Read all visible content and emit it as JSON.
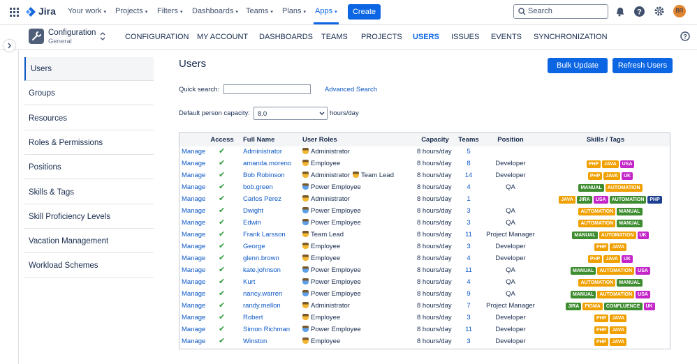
{
  "nav": {
    "product": "Jira",
    "items": [
      "Your work",
      "Projects",
      "Filters",
      "Dashboards",
      "Teams",
      "Plans",
      "Apps"
    ],
    "active_item": 6,
    "create": "Create",
    "search": "Search",
    "avatar": "BR"
  },
  "app": {
    "title": "Configuration",
    "subtitle": "General",
    "tabs": [
      "CONFIGURATION",
      "MY ACCOUNT",
      "DASHBOARDS",
      "TEAMS",
      "PROJECTS",
      "USERS",
      "ISSUES",
      "EVENTS",
      "SYNCHRONIZATION"
    ],
    "active_tab": 5
  },
  "sidebar": {
    "items": [
      "Users",
      "Groups",
      "Resources",
      "Roles & Permissions",
      "Positions",
      "Skills & Tags",
      "Skill Proficiency Levels",
      "Vacation Management",
      "Workload Schemes"
    ],
    "active": 0
  },
  "main": {
    "title": "Users",
    "buttons": [
      "Bulk Update",
      "Refresh Users"
    ],
    "quick_search_label": "Quick search:",
    "advanced_search": "Advanced Search",
    "capacity_label": "Default person capacity:",
    "capacity_value": "8.0",
    "capacity_unit": "hours/day"
  },
  "table": {
    "columns": [
      "Access",
      "Full Name",
      "User Roles",
      "Capacity",
      "Teams",
      "Position",
      "Skills / Tags"
    ],
    "rows": [
      {
        "action": "Manage",
        "name": "Administrator",
        "roles": [
          "Administrator"
        ],
        "capacity": "8 hours/day",
        "teams": 5,
        "position": null,
        "tags": []
      },
      {
        "action": "Manage",
        "name": "amanda.moreno",
        "roles": [
          "Employee"
        ],
        "capacity": "8 hours/day",
        "teams": 8,
        "position": "Developer",
        "tags": [
          {
            "label": "PHP",
            "color": "#f0a000"
          },
          {
            "label": "JAVA",
            "color": "#f0a000"
          },
          {
            "label": "USA",
            "color": "#c425c9"
          }
        ]
      },
      {
        "action": "Manage",
        "name": "Bob Robinson",
        "roles": [
          "Administrator",
          "Team Lead"
        ],
        "capacity": "8 hours/day",
        "teams": 14,
        "position": "Developer",
        "tags": [
          {
            "label": "PHP",
            "color": "#f0a000"
          },
          {
            "label": "JAVA",
            "color": "#f0a000"
          },
          {
            "label": "UK",
            "color": "#c425c9"
          }
        ]
      },
      {
        "action": "Manage",
        "name": "bob.green",
        "roles": [
          "Power Employee"
        ],
        "capacity": "8 hours/day",
        "teams": 4,
        "position": "QA",
        "tags": [
          {
            "label": "MANUAL",
            "color": "#3d8c2f"
          },
          {
            "label": "AUTOMATION",
            "color": "#f0a000"
          }
        ]
      },
      {
        "action": "Manage",
        "name": "Carlos Perez",
        "roles": [
          "Administrator"
        ],
        "capacity": "8 hours/day",
        "teams": 1,
        "position": null,
        "tags": [
          {
            "label": "JAVA",
            "color": "#f0a000"
          },
          {
            "label": "JIRA",
            "color": "#3d8c2f"
          },
          {
            "label": "USA",
            "color": "#c425c9"
          },
          {
            "label": "AUTOMATION",
            "color": "#3d8c2f"
          },
          {
            "label": "PHP",
            "color": "#1d3f8f"
          }
        ]
      },
      {
        "action": "Manage",
        "name": "Dwight",
        "roles": [
          "Power Employee"
        ],
        "capacity": "8 hours/day",
        "teams": 3,
        "position": "QA",
        "tags": [
          {
            "label": "AUTOMATION",
            "color": "#f0a000"
          },
          {
            "label": "MANUAL",
            "color": "#3d8c2f"
          }
        ]
      },
      {
        "action": "Manage",
        "name": "Edwin",
        "roles": [
          "Power Employee"
        ],
        "capacity": "8 hours/day",
        "teams": 3,
        "position": "QA",
        "tags": [
          {
            "label": "AUTOMATION",
            "color": "#f0a000"
          },
          {
            "label": "MANUAL",
            "color": "#3d8c2f"
          }
        ]
      },
      {
        "action": "Manage",
        "name": "Frank Larsson",
        "roles": [
          "Team Lead"
        ],
        "capacity": "8 hours/day",
        "teams": 11,
        "position": "Project Manager",
        "tags": [
          {
            "label": "MANUAL",
            "color": "#3d8c2f"
          },
          {
            "label": "AUTOMATION",
            "color": "#f0a000"
          },
          {
            "label": "UK",
            "color": "#c425c9"
          }
        ]
      },
      {
        "action": "Manage",
        "name": "George",
        "roles": [
          "Employee"
        ],
        "capacity": "8 hours/day",
        "teams": 3,
        "position": "Developer",
        "tags": [
          {
            "label": "PHP",
            "color": "#f0a000"
          },
          {
            "label": "JAVA",
            "color": "#f0a000"
          }
        ]
      },
      {
        "action": "Manage",
        "name": "glenn.brown",
        "roles": [
          "Employee"
        ],
        "capacity": "8 hours/day",
        "teams": 4,
        "position": "Developer",
        "tags": [
          {
            "label": "PHP",
            "color": "#f0a000"
          },
          {
            "label": "JAVA",
            "color": "#f0a000"
          },
          {
            "label": "UK",
            "color": "#c425c9"
          }
        ]
      },
      {
        "action": "Manage",
        "name": "kate.johnson",
        "roles": [
          "Power Employee"
        ],
        "capacity": "8 hours/day",
        "teams": 11,
        "position": "QA",
        "tags": [
          {
            "label": "MANUAL",
            "color": "#3d8c2f"
          },
          {
            "label": "AUTOMATION",
            "color": "#f0a000"
          },
          {
            "label": "USA",
            "color": "#c425c9"
          }
        ]
      },
      {
        "action": "Manage",
        "name": "Kurt",
        "roles": [
          "Power Employee"
        ],
        "capacity": "8 hours/day",
        "teams": 4,
        "position": "QA",
        "tags": [
          {
            "label": "AUTOMATION",
            "color": "#f0a000"
          },
          {
            "label": "MANUAL",
            "color": "#3d8c2f"
          }
        ]
      },
      {
        "action": "Manage",
        "name": "nancy.warren",
        "roles": [
          "Power Employee"
        ],
        "capacity": "8 hours/day",
        "teams": 9,
        "position": "QA",
        "tags": [
          {
            "label": "MANUAL",
            "color": "#3d8c2f"
          },
          {
            "label": "AUTOMATION",
            "color": "#f0a000"
          },
          {
            "label": "USA",
            "color": "#c425c9"
          }
        ]
      },
      {
        "action": "Manage",
        "name": "randy.mellon",
        "roles": [
          "Administrator"
        ],
        "capacity": "8 hours/day",
        "teams": 7,
        "position": "Project Manager",
        "tags": [
          {
            "label": "JIRA",
            "color": "#3d8c2f"
          },
          {
            "label": "FIGMA",
            "color": "#f0a000"
          },
          {
            "label": "CONFLUENCE",
            "color": "#3d8c2f"
          },
          {
            "label": "UK",
            "color": "#c425c9"
          }
        ]
      },
      {
        "action": "Manage",
        "name": "Robert",
        "roles": [
          "Employee"
        ],
        "capacity": "8 hours/day",
        "teams": 3,
        "position": "Developer",
        "tags": [
          {
            "label": "PHP",
            "color": "#f0a000"
          },
          {
            "label": "JAVA",
            "color": "#f0a000"
          }
        ]
      },
      {
        "action": "Manage",
        "name": "Simon Richman",
        "roles": [
          "Power Employee"
        ],
        "capacity": "8 hours/day",
        "teams": 11,
        "position": "Developer",
        "tags": [
          {
            "label": "PHP",
            "color": "#f0a000"
          },
          {
            "label": "JAVA",
            "color": "#f0a000"
          }
        ]
      },
      {
        "action": "Manage",
        "name": "Winston",
        "roles": [
          "Employee"
        ],
        "capacity": "8 hours/day",
        "teams": 3,
        "position": "Developer",
        "tags": [
          {
            "label": "PHP",
            "color": "#f0a000"
          },
          {
            "label": "JAVA",
            "color": "#f0a000"
          }
        ]
      }
    ]
  }
}
